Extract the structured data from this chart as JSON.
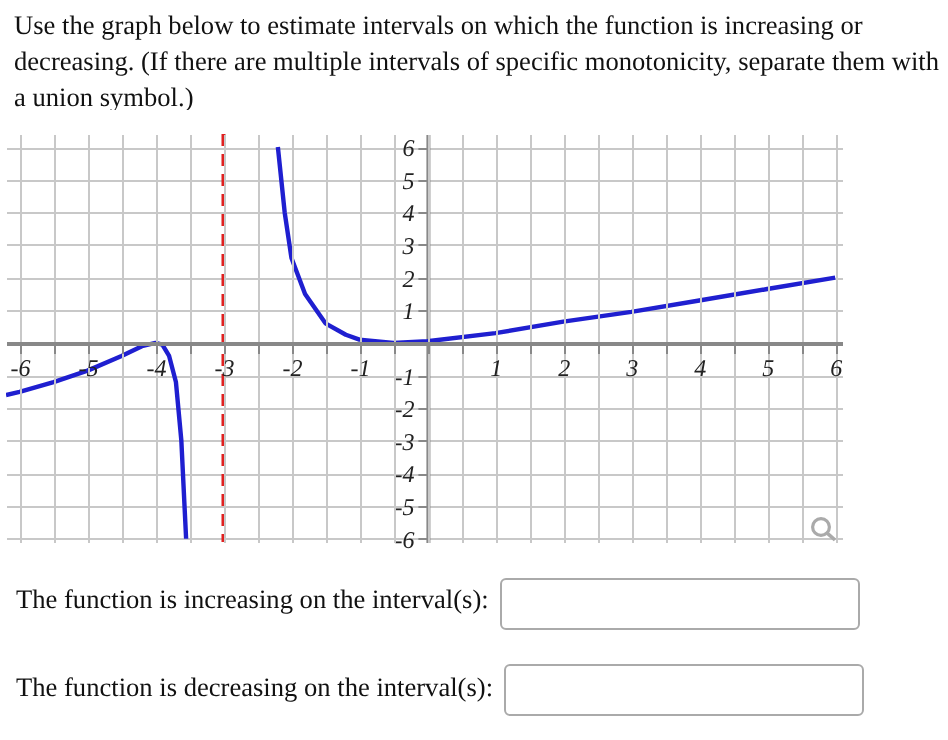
{
  "chart_data": {
    "type": "line",
    "title": "Use the graph below to estimate intervals on which the function is increasing or decreasing. (If there are multiple intervals of specific monotonicity, separate them with a union symbol.)",
    "annotations": [
      "The function is increasing on the interval(s):",
      "The function is decreasing on the interval(s):"
    ],
    "series": [
      {
        "color": "#1f1fd0",
        "x": [
          -6.2,
          -6,
          -5.5,
          -5,
          -4.5,
          -4.2,
          -4,
          -3.9,
          -3.8,
          -3.7,
          -3.62,
          -3.55
        ],
        "values": [
          -1.6,
          -1.5,
          -1.2,
          -0.85,
          -0.4,
          -0.1,
          0,
          -0.05,
          -0.4,
          -1.2,
          -3,
          -6
        ]
      },
      {
        "color": "#1f1fd0",
        "x": [
          -2.2,
          -2.1,
          -2,
          -1.8,
          -1.5,
          -1.2,
          -1,
          -0.5,
          0,
          1,
          2,
          3,
          4,
          5,
          6
        ],
        "values": [
          6,
          4,
          2.6,
          1.5,
          0.6,
          0.25,
          0.1,
          0,
          0.05,
          0.3,
          0.65,
          0.95,
          1.3,
          1.65,
          2
        ]
      }
    ],
    "xlim": [
      -6.2,
      6.1
    ],
    "ylim": [
      -6.1,
      6.4
    ],
    "xticks": [
      -6,
      {
        "value": -5.5,
        "label": null
      },
      -5,
      {
        "value": -4.5,
        "label": null
      },
      -4,
      {
        "value": -3.5,
        "label": null
      },
      -3,
      {
        "value": -2.5,
        "label": null
      },
      -2,
      {
        "value": -1.5,
        "label": null
      },
      -1,
      {
        "value": -0.5,
        "label": null
      },
      {
        "value": 0,
        "label": null
      },
      {
        "value": 0.5,
        "label": null
      },
      1,
      {
        "value": 1.5,
        "label": null
      },
      2,
      {
        "value": 2.5,
        "label": null
      },
      3,
      {
        "value": 3.5,
        "label": null
      },
      4,
      {
        "value": 4.5,
        "label": null
      },
      5,
      {
        "value": 5.5,
        "label": null
      },
      6
    ],
    "yticks": [
      -6,
      -5,
      -4,
      -3,
      -2,
      -1,
      {
        "value": 0,
        "label": null
      },
      1,
      2,
      3,
      4,
      5,
      6
    ],
    "grid": true,
    "line_style": "solid",
    "ref_lines": [
      {
        "axis": "x",
        "value": -3,
        "color": "#e02020",
        "line_style": "dashed"
      }
    ]
  }
}
